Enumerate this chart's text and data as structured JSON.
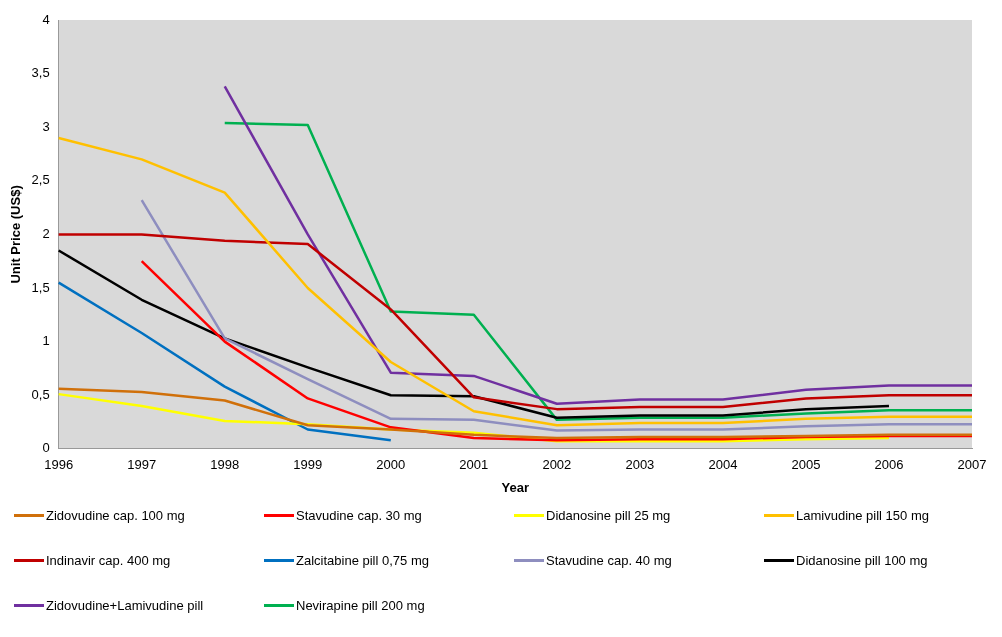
{
  "chart_data": {
    "type": "line",
    "xlabel": "Year",
    "ylabel": "Unit Price (US$)",
    "categories": [
      "1996",
      "1997",
      "1998",
      "1999",
      "2000",
      "2001",
      "2002",
      "2003",
      "2004",
      "2005",
      "2006",
      "2007"
    ],
    "ylim": [
      0,
      4
    ],
    "yticks": [
      0,
      {
        "value": 0.5,
        "label": "0,5"
      },
      1,
      {
        "value": 1.5,
        "label": "1,5"
      },
      2,
      {
        "value": 2.5,
        "label": "2,5"
      },
      3,
      {
        "value": 3.5,
        "label": "3,5"
      },
      4
    ],
    "grid": false,
    "legend": "bottom",
    "marker": "none",
    "line_style": "solid",
    "series": [
      {
        "name": "Zidovudine cap. 100 mg",
        "color": "#d0700a",
        "values": [
          0.56,
          0.53,
          0.45,
          0.22,
          0.18,
          0.13,
          0.1,
          0.11,
          0.11,
          0.12,
          0.13,
          0.13
        ]
      },
      {
        "name": "Stavudine cap. 30 mg",
        "color": "#ff0000",
        "values": [
          null,
          1.75,
          1.0,
          0.47,
          0.2,
          0.1,
          0.08,
          0.09,
          0.09,
          0.11,
          0.12,
          0.12
        ]
      },
      {
        "name": "Didanosine pill 25 mg",
        "color": "#ffff00",
        "values": [
          0.51,
          0.4,
          0.26,
          0.23,
          0.18,
          0.15,
          0.07,
          0.07,
          0.07,
          0.09,
          0.1,
          null
        ]
      },
      {
        "name": "Lamivudine pill 150 mg",
        "color": "#ffc000",
        "values": [
          2.9,
          2.7,
          2.39,
          1.5,
          0.81,
          0.35,
          0.22,
          0.24,
          0.24,
          0.28,
          0.3,
          0.3
        ]
      },
      {
        "name": "Indinavir cap. 400 mg",
        "color": "#c00000",
        "values": [
          2.0,
          2.0,
          1.94,
          1.91,
          1.3,
          0.48,
          0.37,
          0.39,
          0.39,
          0.47,
          0.5,
          0.5
        ]
      },
      {
        "name": "Zalcitabine pill 0,75 mg",
        "color": "#0070c0",
        "values": [
          1.55,
          1.08,
          0.58,
          0.18,
          0.08,
          null,
          null,
          null,
          null,
          null,
          null,
          null
        ]
      },
      {
        "name": "Stavudine cap. 40 mg",
        "color": "#8e8ebf",
        "values": [
          null,
          2.32,
          1.03,
          0.65,
          0.28,
          0.27,
          0.17,
          0.18,
          0.18,
          0.21,
          0.23,
          0.23
        ]
      },
      {
        "name": "Didanosine pill 100 mg",
        "color": "#000000",
        "values": [
          1.85,
          1.39,
          1.03,
          0.76,
          0.5,
          0.49,
          0.29,
          0.31,
          0.31,
          0.37,
          0.4,
          null
        ]
      },
      {
        "name": "Zidovudine+Lamivudine pill",
        "color": "#7030a0",
        "values": [
          null,
          null,
          3.38,
          2.0,
          0.71,
          0.68,
          0.42,
          0.46,
          0.46,
          0.55,
          0.59,
          0.59
        ]
      },
      {
        "name": "Nevirapine pill 200 mg",
        "color": "#00b050",
        "values": [
          null,
          null,
          3.04,
          3.02,
          1.28,
          1.25,
          0.27,
          0.29,
          0.29,
          0.33,
          0.36,
          0.36
        ]
      }
    ]
  }
}
